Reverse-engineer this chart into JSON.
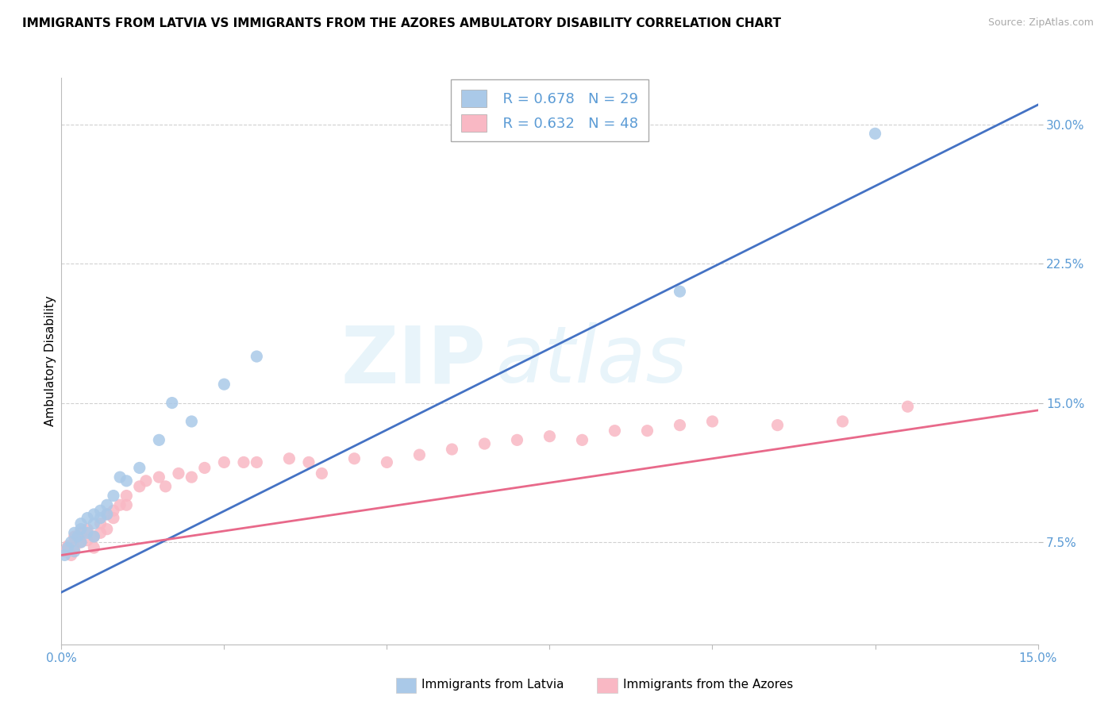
{
  "title": "IMMIGRANTS FROM LATVIA VS IMMIGRANTS FROM THE AZORES AMBULATORY DISABILITY CORRELATION CHART",
  "source": "Source: ZipAtlas.com",
  "ylabel": "Ambulatory Disability",
  "xmin": 0.0,
  "xmax": 0.15,
  "ymin": 0.02,
  "ymax": 0.325,
  "yticks": [
    0.075,
    0.15,
    0.225,
    0.3
  ],
  "ytick_labels": [
    "7.5%",
    "15.0%",
    "22.5%",
    "30.0%"
  ],
  "latvia_color": "#aac9e8",
  "azores_color": "#f9b8c4",
  "latvia_line_color": "#4472c4",
  "azores_line_color": "#e8698a",
  "watermark_line1": "ZIP",
  "watermark_line2": "atlas",
  "legend_r_latvia": "R = 0.678",
  "legend_n_latvia": "N = 29",
  "legend_r_azores": "R = 0.632",
  "legend_n_azores": "N = 48",
  "legend_label_latvia": "Immigrants from Latvia",
  "legend_label_azores": "Immigrants from the Azores",
  "tick_color": "#5b9bd5",
  "background_color": "#ffffff",
  "grid_color": "#cccccc",
  "title_fontsize": 11,
  "axis_fontsize": 11,
  "latvia_line_slope": 1.75,
  "latvia_line_intercept": 0.048,
  "azores_line_slope": 0.52,
  "azores_line_intercept": 0.068,
  "latvia_scatter_x": [
    0.0005,
    0.001,
    0.0015,
    0.002,
    0.002,
    0.0025,
    0.003,
    0.003,
    0.003,
    0.004,
    0.004,
    0.005,
    0.005,
    0.005,
    0.006,
    0.006,
    0.007,
    0.007,
    0.008,
    0.009,
    0.01,
    0.012,
    0.015,
    0.017,
    0.02,
    0.025,
    0.03,
    0.095,
    0.125
  ],
  "latvia_scatter_y": [
    0.068,
    0.072,
    0.075,
    0.07,
    0.08,
    0.078,
    0.075,
    0.082,
    0.085,
    0.08,
    0.088,
    0.078,
    0.085,
    0.09,
    0.088,
    0.092,
    0.09,
    0.095,
    0.1,
    0.11,
    0.108,
    0.115,
    0.13,
    0.15,
    0.14,
    0.16,
    0.175,
    0.21,
    0.295
  ],
  "azores_scatter_x": [
    0.0005,
    0.001,
    0.0015,
    0.002,
    0.002,
    0.003,
    0.003,
    0.004,
    0.004,
    0.005,
    0.005,
    0.006,
    0.006,
    0.007,
    0.007,
    0.008,
    0.008,
    0.009,
    0.01,
    0.01,
    0.012,
    0.013,
    0.015,
    0.016,
    0.018,
    0.02,
    0.022,
    0.025,
    0.028,
    0.03,
    0.035,
    0.038,
    0.04,
    0.045,
    0.05,
    0.055,
    0.06,
    0.065,
    0.07,
    0.075,
    0.08,
    0.085,
    0.09,
    0.095,
    0.1,
    0.11,
    0.12,
    0.13
  ],
  "azores_scatter_y": [
    0.07,
    0.073,
    0.068,
    0.072,
    0.078,
    0.075,
    0.08,
    0.076,
    0.082,
    0.078,
    0.072,
    0.085,
    0.08,
    0.082,
    0.09,
    0.088,
    0.092,
    0.095,
    0.095,
    0.1,
    0.105,
    0.108,
    0.11,
    0.105,
    0.112,
    0.11,
    0.115,
    0.118,
    0.118,
    0.118,
    0.12,
    0.118,
    0.112,
    0.12,
    0.118,
    0.122,
    0.125,
    0.128,
    0.13,
    0.132,
    0.13,
    0.135,
    0.135,
    0.138,
    0.14,
    0.138,
    0.14,
    0.148
  ]
}
